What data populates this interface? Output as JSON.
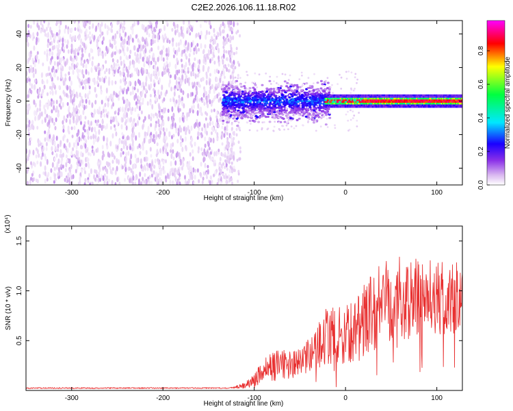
{
  "figure": {
    "title": "C2E2.2026.106.11.18.R02"
  },
  "chart_data": [
    {
      "type": "heatmap",
      "title": "C2E2.2026.106.11.18.R02",
      "xlabel": "Height of straight line (km)",
      "ylabel": "Frequency (Hz)",
      "xlim": [
        -350,
        128
      ],
      "ylim": [
        -50,
        48
      ],
      "xticks": [
        -300,
        -200,
        -100,
        0,
        100
      ],
      "xtick_labels": [
        "-300",
        "-200",
        "-100",
        "0",
        "100"
      ],
      "yticks": [
        40,
        20,
        0,
        -20,
        -40
      ],
      "ytick_labels": [
        "40",
        "20",
        "0",
        "-20",
        "-40"
      ],
      "colorbar": {
        "label": "Normalized spectral amplitude",
        "range": [
          0,
          0.98
        ],
        "ticks": [
          0.0,
          0.2,
          0.4,
          0.6,
          0.8
        ],
        "tick_labels": [
          "0.0",
          "0.2",
          "0.4",
          "0.6",
          "0.8"
        ],
        "colormap": [
          "#ffffff",
          "#dab8f0",
          "#8a30e8",
          "#1a00ff",
          "#00e8ff",
          "#00ff40",
          "#ffff00",
          "#ff0000",
          "#ff00ff"
        ]
      },
      "regions": [
        {
          "x_range": [
            -350,
            -122
          ],
          "description": "broadband noise",
          "freq_range": [
            -50,
            48
          ],
          "amplitude": 0.1
        },
        {
          "x_range": [
            -135,
            -20
          ],
          "description": "spread band",
          "freq_range": [
            -10,
            10
          ],
          "amplitude": 0.3
        },
        {
          "x_range": [
            -20,
            128
          ],
          "description": "narrow line",
          "center_freq": 0,
          "amplitude": 0.9
        }
      ]
    },
    {
      "type": "line",
      "xlabel": "Height of straight line (km)",
      "ylabel": "SNR (10 * v/v)",
      "y_multiplier": "(x10⁴)",
      "xlim": [
        -350,
        128
      ],
      "ylim": [
        0,
        1.65
      ],
      "xticks": [
        -300,
        -200,
        -100,
        0,
        100
      ],
      "xtick_labels": [
        "-300",
        "-200",
        "-100",
        "0",
        "100"
      ],
      "yticks": [
        0.5,
        1.0,
        1.5
      ],
      "ytick_labels": [
        "0.5",
        "1.0",
        "1.5"
      ],
      "series": [
        {
          "name": "SNR",
          "color": "#e83030",
          "x": [
            -350,
            -300,
            -200,
            -130,
            -110,
            -100,
            -90,
            -80,
            -70,
            -60,
            -50,
            -40,
            -30,
            -20,
            -10,
            0,
            10,
            20,
            30,
            40,
            50,
            60,
            70,
            80,
            90,
            100,
            110,
            120,
            128
          ],
          "mean": [
            0.02,
            0.02,
            0.02,
            0.02,
            0.05,
            0.1,
            0.2,
            0.24,
            0.26,
            0.26,
            0.27,
            0.34,
            0.45,
            0.55,
            0.55,
            0.55,
            0.6,
            0.72,
            0.8,
            0.95,
            0.95,
            0.92,
            0.95,
            0.9,
            0.95,
            0.92,
            0.9,
            0.9,
            0.92
          ],
          "amp": [
            0.0,
            0.0,
            0.0,
            0.0,
            0.03,
            0.08,
            0.12,
            0.15,
            0.15,
            0.14,
            0.15,
            0.18,
            0.22,
            0.3,
            0.28,
            0.3,
            0.3,
            0.35,
            0.4,
            0.45,
            0.45,
            0.42,
            0.42,
            0.4,
            0.4,
            0.38,
            0.38,
            0.38,
            0.38
          ]
        }
      ]
    }
  ]
}
